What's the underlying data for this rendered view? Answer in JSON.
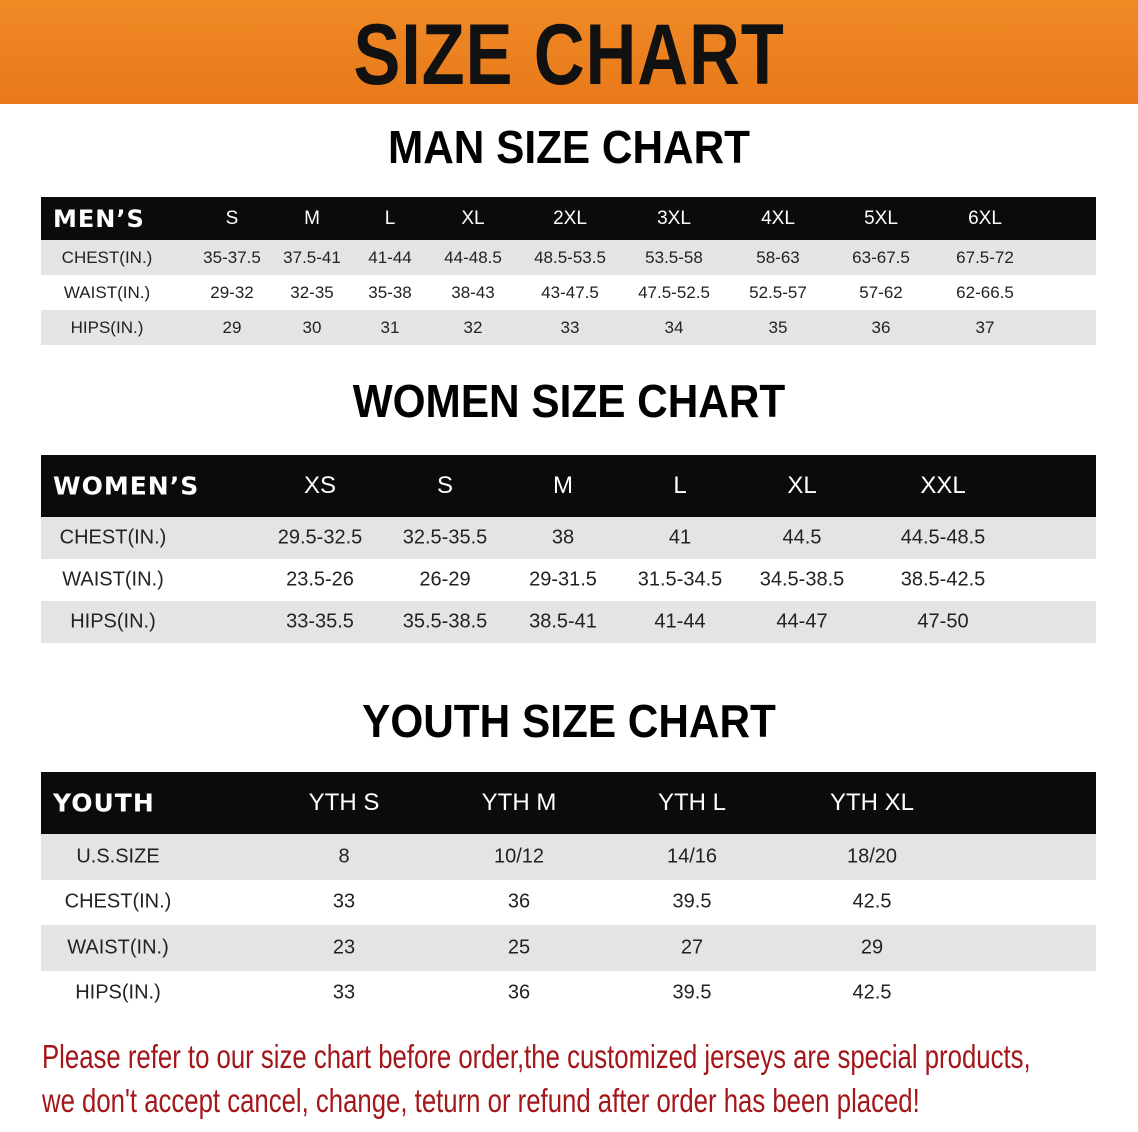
{
  "banner_title": "SIZE CHART",
  "men": {
    "title": "MAN SIZE CHART",
    "corner": "MEN’S",
    "sizes": [
      "S",
      "M",
      "L",
      "XL",
      "2XL",
      "3XL",
      "4XL",
      "5XL",
      "6XL"
    ],
    "rows": [
      {
        "label": "CHEST(IN.)",
        "values": [
          "35-37.5",
          "37.5-41",
          "41-44",
          "44-48.5",
          "48.5-53.5",
          "53.5-58",
          "58-63",
          "63-67.5",
          "67.5-72"
        ]
      },
      {
        "label": "WAIST(IN.)",
        "values": [
          "29-32",
          "32-35",
          "35-38",
          "38-43",
          "43-47.5",
          "47.5-52.5",
          "52.5-57",
          "57-62",
          "62-66.5"
        ]
      },
      {
        "label": "HIPS(IN.)",
        "values": [
          "29",
          "30",
          "31",
          "32",
          "33",
          "34",
          "35",
          "36",
          "37"
        ]
      }
    ]
  },
  "women": {
    "title": "WOMEN SIZE CHART",
    "corner": "WOMEN’S",
    "sizes": [
      "XS",
      "S",
      "M",
      "L",
      "XL",
      "XXL"
    ],
    "rows": [
      {
        "label": "CHEST(IN.)",
        "values": [
          "29.5-32.5",
          "32.5-35.5",
          "38",
          "41",
          "44.5",
          "44.5-48.5"
        ]
      },
      {
        "label": "WAIST(IN.)",
        "values": [
          "23.5-26",
          "26-29",
          "29-31.5",
          "31.5-34.5",
          "34.5-38.5",
          "38.5-42.5"
        ]
      },
      {
        "label": "HIPS(IN.)",
        "values": [
          "33-35.5",
          "35.5-38.5",
          "38.5-41",
          "41-44",
          "44-47",
          "47-50"
        ]
      }
    ]
  },
  "youth": {
    "title": "YOUTH SIZE CHART",
    "corner": "YOUTH",
    "sizes": [
      "YTH S",
      "YTH M",
      "YTH L",
      "YTH XL"
    ],
    "rows": [
      {
        "label": "U.S.SIZE",
        "values": [
          "8",
          "10/12",
          "14/16",
          "18/20"
        ]
      },
      {
        "label": "CHEST(IN.)",
        "values": [
          "33",
          "36",
          "39.5",
          "42.5"
        ]
      },
      {
        "label": "WAIST(IN.)",
        "values": [
          "23",
          "25",
          "27",
          "29"
        ]
      },
      {
        "label": "HIPS(IN.)",
        "values": [
          "33",
          "36",
          "39.5",
          "42.5"
        ]
      }
    ]
  },
  "notice": [
    "Please refer to our size chart before order,the customized jerseys are special products,",
    "we don't accept cancel, change, teturn or refund after order has been placed!"
  ],
  "colors": {
    "banner": "#ec8320",
    "header_row": "#0b0b0b",
    "stripe": "#e4e4e4",
    "notice": "#a3161a"
  }
}
